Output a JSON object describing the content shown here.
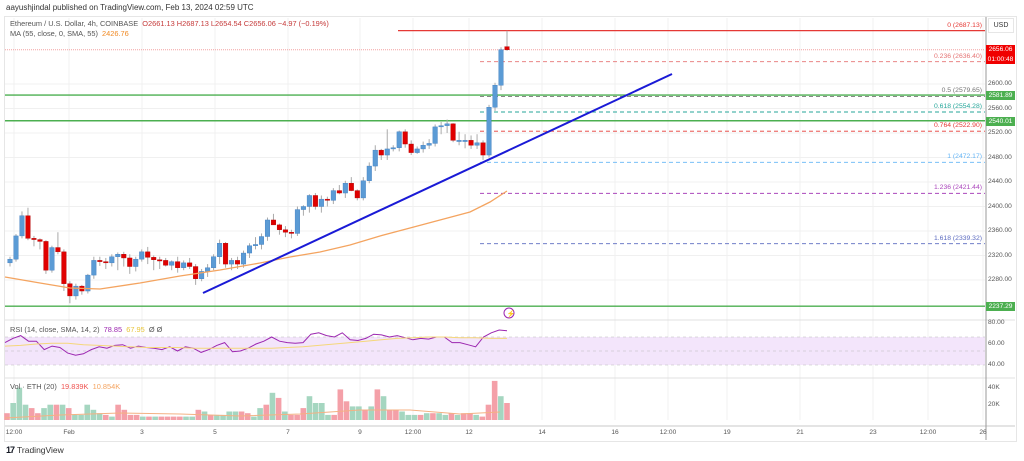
{
  "publisher": "aayushjindal published on TradingView.com, Feb 13, 2024 02:59 UTC",
  "legend": {
    "symbol": "Ethereum / U.S. Dollar, 4h, COINBASE",
    "ohlc": "O2661.13  H2687.13  L2654.54  C2656.06  −4.97 (−0.19%)",
    "ma_label": "MA (55, close, 0, SMA, 55)",
    "ma_value": "2426.76",
    "rsi_label": "RSI (14, close, SMA, 14, 2)",
    "rsi_value": "78.85",
    "rsi_ma_value": "67.95",
    "rsi_extra": "Ø  Ø",
    "vol_label": "Vol · ETH (20)",
    "vol_value": "19.839K",
    "vol_ma_value": "10.854K"
  },
  "price_axis": {
    "currency": "USD",
    "labels": [
      "2600.00",
      "2560.00",
      "2520.00",
      "2480.00",
      "2440.00",
      "2400.00",
      "2360.00",
      "2320.00",
      "2280.00"
    ],
    "current_price_tag": "2656.06",
    "countdown": "01:00:48",
    "level_tags": [
      "2581.89",
      "2540.01",
      "2237.29"
    ],
    "rsi_labels": [
      "80.00",
      "60.00",
      "40.00"
    ],
    "volume_labels": [
      "40K",
      "20K"
    ]
  },
  "fib_levels": [
    {
      "label": "0 (2687.13)",
      "color": "#e53935"
    },
    {
      "label": "0.236 (2636.40)",
      "color": "#e57373"
    },
    {
      "label": "0.5 (2579.65)",
      "color": "#757575"
    },
    {
      "label": "0.618 (2554.28)",
      "color": "#26a69a"
    },
    {
      "label": "0.764 (2522.90)",
      "color": "#e53935"
    },
    {
      "label": "1 (2472.17)",
      "color": "#64b5f6"
    },
    {
      "label": "1.236 (2421.44)",
      "color": "#ab47bc"
    },
    {
      "label": "1.618 (2339.32)",
      "color": "#5c6bc0"
    }
  ],
  "time_axis": [
    "12:00",
    "Feb",
    "3",
    "5",
    "7",
    "9",
    "12:00",
    "12",
    "14",
    "16",
    "12:00",
    "19",
    "21",
    "23",
    "12:00",
    "26"
  ],
  "brand": "TradingView",
  "colors": {
    "up": "#5b9bd5",
    "down": "#e00000",
    "ma": "#f4a460",
    "trendline": "#1a1ad6",
    "support": "#4caf50",
    "rsi": "#9c27b0",
    "rsi_ma": "#f5d77a",
    "vol_up": "#a5d6c0",
    "vol_down": "#f4a0a8"
  },
  "chart_data": {
    "type": "candlestick",
    "title": "Ethereum / U.S. Dollar, 4h, COINBASE",
    "xlabel": "",
    "ylabel": "USD",
    "ylim": [
      2230,
      2700
    ],
    "x_ticks": [
      "12:00",
      "Feb",
      "3",
      "5",
      "7",
      "9",
      "12:00",
      "12",
      "14",
      "16",
      "12:00",
      "19",
      "21",
      "23",
      "12:00",
      "26"
    ],
    "candles": [
      [
        2308,
        2318,
        2302,
        2314
      ],
      [
        2314,
        2355,
        2310,
        2352
      ],
      [
        2352,
        2392,
        2348,
        2385
      ],
      [
        2385,
        2398,
        2345,
        2348
      ],
      [
        2348,
        2352,
        2335,
        2346
      ],
      [
        2346,
        2348,
        2330,
        2343
      ],
      [
        2343,
        2345,
        2290,
        2296
      ],
      [
        2296,
        2336,
        2292,
        2333
      ],
      [
        2333,
        2358,
        2322,
        2326
      ],
      [
        2326,
        2330,
        2262,
        2274
      ],
      [
        2274,
        2278,
        2242,
        2254
      ],
      [
        2254,
        2274,
        2248,
        2270
      ],
      [
        2270,
        2272,
        2256,
        2262
      ],
      [
        2262,
        2290,
        2258,
        2288
      ],
      [
        2288,
        2318,
        2282,
        2312
      ],
      [
        2312,
        2318,
        2303,
        2310
      ],
      [
        2310,
        2316,
        2298,
        2308
      ],
      [
        2308,
        2322,
        2302,
        2318
      ],
      [
        2318,
        2325,
        2296,
        2322
      ],
      [
        2322,
        2326,
        2302,
        2316
      ],
      [
        2316,
        2322,
        2290,
        2302
      ],
      [
        2302,
        2318,
        2294,
        2314
      ],
      [
        2314,
        2330,
        2310,
        2326
      ],
      [
        2326,
        2334,
        2306,
        2317
      ],
      [
        2317,
        2320,
        2296,
        2313
      ],
      [
        2313,
        2318,
        2298,
        2312
      ],
      [
        2312,
        2316,
        2302,
        2304
      ],
      [
        2304,
        2312,
        2296,
        2310
      ],
      [
        2310,
        2318,
        2292,
        2300
      ],
      [
        2300,
        2312,
        2296,
        2308
      ],
      [
        2308,
        2316,
        2298,
        2302
      ],
      [
        2302,
        2306,
        2272,
        2282
      ],
      [
        2282,
        2298,
        2278,
        2294
      ],
      [
        2294,
        2306,
        2285,
        2300
      ],
      [
        2300,
        2322,
        2296,
        2318
      ],
      [
        2318,
        2346,
        2306,
        2340
      ],
      [
        2340,
        2342,
        2300,
        2306
      ],
      [
        2306,
        2316,
        2296,
        2312
      ],
      [
        2312,
        2318,
        2298,
        2306
      ],
      [
        2306,
        2328,
        2300,
        2324
      ],
      [
        2324,
        2340,
        2316,
        2336
      ],
      [
        2336,
        2350,
        2330,
        2338
      ],
      [
        2338,
        2356,
        2330,
        2351
      ],
      [
        2351,
        2382,
        2344,
        2378
      ],
      [
        2378,
        2388,
        2370,
        2370
      ],
      [
        2370,
        2372,
        2354,
        2362
      ],
      [
        2362,
        2368,
        2350,
        2358
      ],
      [
        2358,
        2362,
        2348,
        2356
      ],
      [
        2356,
        2400,
        2352,
        2395
      ],
      [
        2395,
        2402,
        2385,
        2400
      ],
      [
        2400,
        2420,
        2390,
        2418
      ],
      [
        2418,
        2422,
        2395,
        2400
      ],
      [
        2400,
        2418,
        2390,
        2412
      ],
      [
        2412,
        2416,
        2400,
        2410
      ],
      [
        2410,
        2430,
        2404,
        2426
      ],
      [
        2426,
        2435,
        2420,
        2422
      ],
      [
        2422,
        2442,
        2414,
        2438
      ],
      [
        2438,
        2448,
        2425,
        2426
      ],
      [
        2426,
        2428,
        2410,
        2414
      ],
      [
        2414,
        2448,
        2410,
        2442
      ],
      [
        2442,
        2472,
        2438,
        2466
      ],
      [
        2466,
        2500,
        2458,
        2492
      ],
      [
        2492,
        2494,
        2476,
        2484
      ],
      [
        2484,
        2526,
        2476,
        2494
      ],
      [
        2494,
        2500,
        2490,
        2496
      ],
      [
        2496,
        2524,
        2490,
        2522
      ],
      [
        2522,
        2526,
        2496,
        2502
      ],
      [
        2502,
        2508,
        2484,
        2488
      ],
      [
        2488,
        2498,
        2486,
        2494
      ],
      [
        2494,
        2506,
        2488,
        2500
      ],
      [
        2500,
        2510,
        2494,
        2503
      ],
      [
        2503,
        2534,
        2498,
        2530
      ],
      [
        2530,
        2538,
        2518,
        2532
      ],
      [
        2532,
        2542,
        2520,
        2535
      ],
      [
        2535,
        2536,
        2505,
        2508
      ],
      [
        2508,
        2522,
        2500,
        2508
      ],
      [
        2508,
        2518,
        2495,
        2508
      ],
      [
        2508,
        2516,
        2494,
        2500
      ],
      [
        2500,
        2518,
        2494,
        2504
      ],
      [
        2504,
        2508,
        2476,
        2484
      ],
      [
        2484,
        2566,
        2480,
        2562
      ],
      [
        2562,
        2602,
        2556,
        2598
      ],
      [
        2598,
        2660,
        2590,
        2656
      ],
      [
        2661,
        2687,
        2654,
        2656
      ]
    ],
    "ma_series_label": "MA 55",
    "levels": {
      "horizontal_support": [
        2581.89,
        2540.01,
        2237.29
      ],
      "fib": [
        2687.13,
        2636.4,
        2579.65,
        2554.28,
        2522.9,
        2472.17,
        2421.44,
        2339.32
      ]
    },
    "rsi": {
      "label": "RSI (14, close, SMA, 14, 2)",
      "value": 78.85,
      "ma": 67.95,
      "ylim": [
        20,
        90
      ],
      "bands": [
        70,
        50,
        30
      ]
    },
    "volume": {
      "label": "Vol · ETH (20)",
      "value": "19.839K",
      "ma": "10.854K",
      "ticks": [
        "20K",
        "40K"
      ]
    }
  }
}
